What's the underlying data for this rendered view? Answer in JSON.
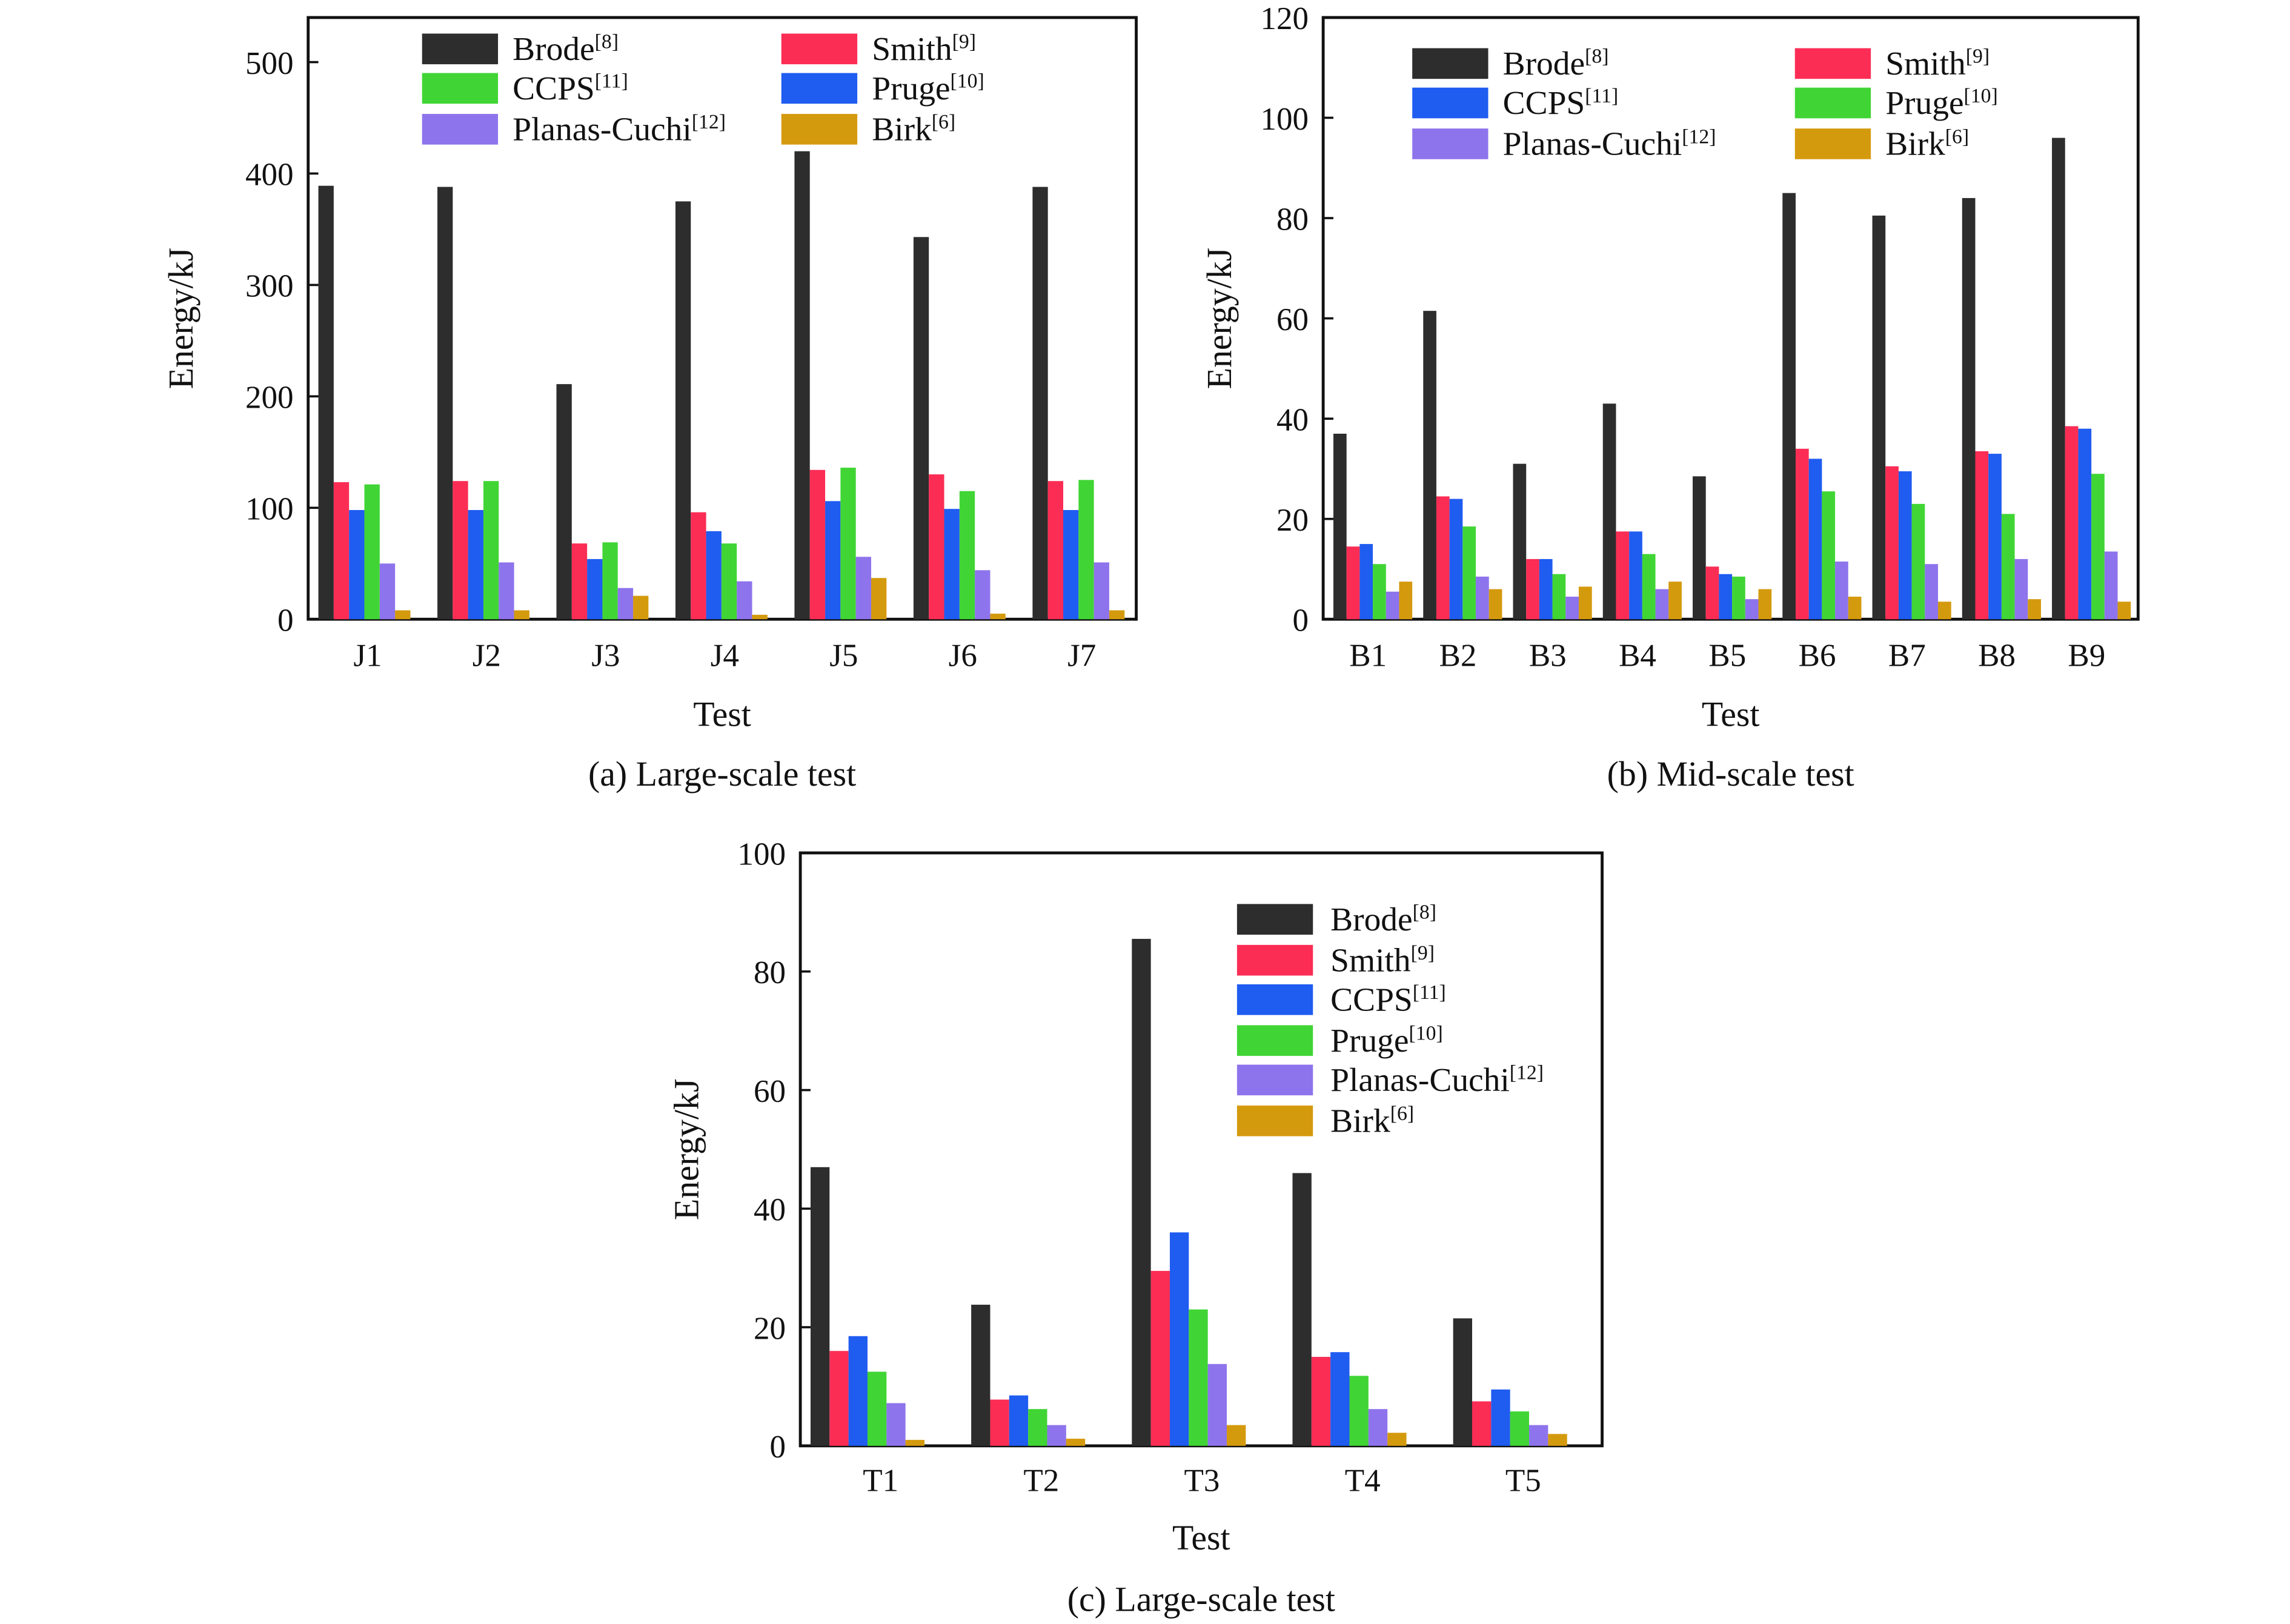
{
  "chart_data": [
    {
      "type": "bar",
      "caption": "(a) Large-scale test",
      "xlabel": "Test",
      "ylabel": "Energy/kJ",
      "ylim": [
        0,
        540
      ],
      "yticks": [
        0,
        100,
        200,
        300,
        400,
        500
      ],
      "legend_columns": 2,
      "legend_order": [
        0,
        1,
        3,
        2,
        4,
        5
      ],
      "categories": [
        "J1",
        "J2",
        "J3",
        "J4",
        "J5",
        "J6",
        "J7"
      ],
      "series": [
        {
          "name": "Brode",
          "ref": "[8]",
          "color": "#2d2d2d",
          "values": [
            389,
            388,
            211,
            375,
            420,
            343,
            388
          ]
        },
        {
          "name": "Smith",
          "ref": "[9]",
          "color": "#fb2d55",
          "values": [
            123,
            124,
            68,
            96,
            134,
            130,
            124
          ]
        },
        {
          "name": "Pruge",
          "ref": "[10]",
          "color": "#1f5cf0",
          "values": [
            98,
            98,
            54,
            79,
            106,
            99,
            98
          ]
        },
        {
          "name": "CCPS",
          "ref": "[11]",
          "color": "#40d535",
          "values": [
            121,
            124,
            69,
            68,
            136,
            115,
            125
          ]
        },
        {
          "name": "Planas-Cuchi",
          "ref": "[12]",
          "color": "#8e74ec",
          "values": [
            50,
            51,
            28,
            34,
            56,
            44,
            51
          ]
        },
        {
          "name": "Birk",
          "ref": "[6]",
          "color": "#d49a0e",
          "values": [
            8,
            8,
            21,
            4,
            37,
            5,
            8
          ]
        }
      ]
    },
    {
      "type": "bar",
      "caption": "(b) Mid-scale test",
      "xlabel": "Test",
      "ylabel": "Energy/kJ",
      "ylim": [
        0,
        120
      ],
      "yticks": [
        0,
        20,
        40,
        60,
        80,
        100,
        120
      ],
      "legend_columns": 2,
      "legend_order": [
        0,
        1,
        2,
        3,
        4,
        5
      ],
      "categories": [
        "B1",
        "B2",
        "B3",
        "B4",
        "B5",
        "B6",
        "B7",
        "B8",
        "B9"
      ],
      "series": [
        {
          "name": "Brode",
          "ref": "[8]",
          "color": "#2d2d2d",
          "values": [
            37,
            61.5,
            31,
            43,
            28.5,
            85,
            80.5,
            84,
            96
          ]
        },
        {
          "name": "Smith",
          "ref": "[9]",
          "color": "#fb2d55",
          "values": [
            14.5,
            24.5,
            12,
            17.5,
            10.5,
            34,
            30.5,
            33.5,
            38.5
          ]
        },
        {
          "name": "CCPS",
          "ref": "[11]",
          "color": "#1f5cf0",
          "values": [
            15,
            24,
            12,
            17.5,
            9,
            32,
            29.5,
            33,
            38
          ]
        },
        {
          "name": "Pruge",
          "ref": "[10]",
          "color": "#40d535",
          "values": [
            11,
            18.5,
            9,
            13,
            8.5,
            25.5,
            23,
            21,
            29
          ]
        },
        {
          "name": "Planas-Cuchi",
          "ref": "[12]",
          "color": "#8e74ec",
          "values": [
            5.5,
            8.5,
            4.5,
            6,
            4,
            11.5,
            11,
            12,
            13.5
          ]
        },
        {
          "name": "Birk",
          "ref": "[6]",
          "color": "#d49a0e",
          "values": [
            7.5,
            6,
            6.5,
            7.5,
            6,
            4.5,
            3.5,
            4,
            3.5
          ]
        }
      ]
    },
    {
      "type": "bar",
      "caption": "(c) Large-scale test",
      "xlabel": "Test",
      "ylabel": "Energy/kJ",
      "ylim": [
        0,
        100
      ],
      "yticks": [
        0,
        20,
        40,
        60,
        80,
        100
      ],
      "legend_columns": 1,
      "legend_order": [
        0,
        1,
        2,
        3,
        4,
        5
      ],
      "categories": [
        "T1",
        "T2",
        "T3",
        "T4",
        "T5"
      ],
      "series": [
        {
          "name": "Brode",
          "ref": "[8]",
          "color": "#2d2d2d",
          "values": [
            47,
            23.8,
            85.5,
            46,
            21.5
          ]
        },
        {
          "name": "Smith",
          "ref": "[9]",
          "color": "#fb2d55",
          "values": [
            16,
            7.8,
            29.5,
            15,
            7.5
          ]
        },
        {
          "name": "CCPS",
          "ref": "[11]",
          "color": "#1f5cf0",
          "values": [
            18.5,
            8.5,
            36,
            15.8,
            9.5
          ]
        },
        {
          "name": "Pruge",
          "ref": "[10]",
          "color": "#40d535",
          "values": [
            12.5,
            6.2,
            23,
            11.8,
            5.8
          ]
        },
        {
          "name": "Planas-Cuchi",
          "ref": "[12]",
          "color": "#8e74ec",
          "values": [
            7.2,
            3.5,
            13.8,
            6.2,
            3.5
          ]
        },
        {
          "name": "Birk",
          "ref": "[6]",
          "color": "#d49a0e",
          "values": [
            1,
            1.2,
            3.5,
            2.2,
            2
          ]
        }
      ]
    }
  ]
}
